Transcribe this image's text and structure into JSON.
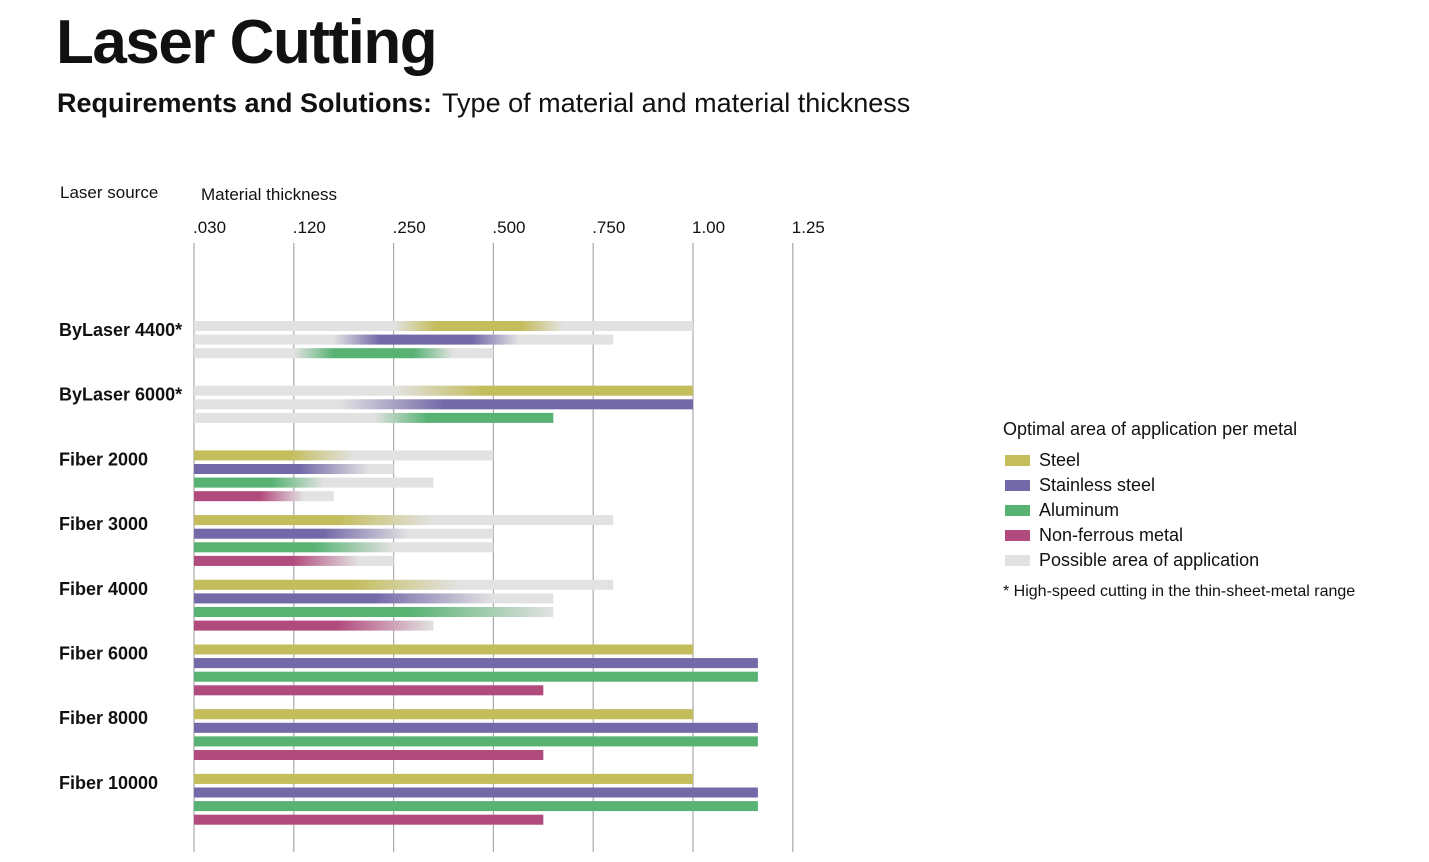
{
  "header": {
    "title": "Laser Cutting",
    "subtitle_bold": "Requirements and Solutions:",
    "subtitle_rest": "Type of material and material thickness"
  },
  "columns": {
    "source": "Laser source",
    "thickness": "Material thickness"
  },
  "legend": {
    "title": "Optimal area of application per metal",
    "items": [
      {
        "label": "Steel",
        "color": "#c4bd5c"
      },
      {
        "label": "Stainless steel",
        "color": "#7368a8"
      },
      {
        "label": "Aluminum",
        "color": "#58b373"
      },
      {
        "label": "Non-ferrous metal",
        "color": "#b24b7d"
      },
      {
        "label": "Possible area of application",
        "color": "#e2e2e2"
      }
    ],
    "note": "* High-speed cutting in the thin-sheet-metal range"
  },
  "chart_data": {
    "type": "bar",
    "orientation": "horizontal",
    "x_ticks": [
      ".030",
      ".120",
      ".250",
      ".500",
      ".750",
      "1.00",
      "1.25"
    ],
    "x_scale": "categorical thickness steps (inches)",
    "grid": true,
    "colors": {
      "Steel": "#c4bd5c",
      "Stainless steel": "#7368a8",
      "Aluminum": "#58b373",
      "Non-ferrous metal": "#b24b7d",
      "possible": "#e2e2e2"
    },
    "categories": [
      "ByLaser 4400*",
      "ByLaser 6000*",
      "Fiber 2000",
      "Fiber 3000",
      "Fiber 4000",
      "Fiber 6000",
      "Fiber 8000",
      "Fiber 10000"
    ],
    "groups": [
      {
        "source": "ByLaser 4400*",
        "bars": [
          {
            "metal": "Steel",
            "possible": [
              0,
              5
            ],
            "optimal": [
              2,
              3.7
            ],
            "fade": "both"
          },
          {
            "metal": "Stainless steel",
            "possible": [
              0,
              4.2
            ],
            "optimal": [
              1.4,
              3.25
            ],
            "fade": "both"
          },
          {
            "metal": "Aluminum",
            "possible": [
              0,
              3
            ],
            "optimal": [
              1,
              2.6
            ],
            "fade": "both"
          }
        ]
      },
      {
        "source": "ByLaser 6000*",
        "bars": [
          {
            "metal": "Steel",
            "possible": [
              0,
              5
            ],
            "optimal": [
              2,
              5
            ],
            "fade": "start"
          },
          {
            "metal": "Stainless steel",
            "possible": [
              0,
              5
            ],
            "optimal": [
              1.45,
              5
            ],
            "fade": "start"
          },
          {
            "metal": "Aluminum",
            "possible": [
              0,
              3.6
            ],
            "optimal": [
              1.8,
              3.6
            ],
            "fade": "start"
          }
        ]
      },
      {
        "source": "Fiber 2000",
        "bars": [
          {
            "metal": "Steel",
            "possible": [
              0,
              3
            ],
            "optimal": [
              0,
              1.6
            ],
            "fade": "end"
          },
          {
            "metal": "Stainless steel",
            "possible": [
              0,
              2
            ],
            "optimal": [
              0,
              1.75
            ],
            "fade": "end"
          },
          {
            "metal": "Aluminum",
            "possible": [
              0,
              2.4
            ],
            "optimal": [
              0,
              1.3
            ],
            "fade": "end"
          },
          {
            "metal": "Non-ferrous metal",
            "possible": [
              0,
              1.4
            ],
            "optimal": [
              0,
              1.1
            ],
            "fade": "end"
          }
        ]
      },
      {
        "source": "Fiber 3000",
        "bars": [
          {
            "metal": "Steel",
            "possible": [
              0,
              4.2
            ],
            "optimal": [
              0,
              2.4
            ],
            "fade": "end"
          },
          {
            "metal": "Stainless steel",
            "possible": [
              0,
              3
            ],
            "optimal": [
              0,
              2.15
            ],
            "fade": "end"
          },
          {
            "metal": "Aluminum",
            "possible": [
              0,
              3
            ],
            "optimal": [
              0,
              2
            ],
            "fade": "end"
          },
          {
            "metal": "Non-ferrous metal",
            "possible": [
              0,
              2
            ],
            "optimal": [
              0,
              1.65
            ],
            "fade": "end"
          }
        ]
      },
      {
        "source": "Fiber 4000",
        "bars": [
          {
            "metal": "Steel",
            "possible": [
              0,
              4.2
            ],
            "optimal": [
              0,
              2.65
            ],
            "fade": "end"
          },
          {
            "metal": "Stainless steel",
            "possible": [
              0,
              3.6
            ],
            "optimal": [
              0,
              3
            ],
            "fade": "end"
          },
          {
            "metal": "Aluminum",
            "possible": [
              0,
              3.6
            ],
            "optimal": [
              0,
              3.6
            ],
            "fade": "end"
          },
          {
            "metal": "Non-ferrous metal",
            "possible": [
              0,
              2.4
            ],
            "optimal": [
              0,
              2.4
            ],
            "fade": "end"
          }
        ]
      },
      {
        "source": "Fiber 6000",
        "bars": [
          {
            "metal": "Steel",
            "possible": [
              0,
              5
            ],
            "optimal": [
              0,
              5
            ],
            "fade": "none"
          },
          {
            "metal": "Stainless steel",
            "possible": [
              0,
              5.65
            ],
            "optimal": [
              0,
              5.65
            ],
            "fade": "none"
          },
          {
            "metal": "Aluminum",
            "possible": [
              0,
              5.65
            ],
            "optimal": [
              0,
              5.65
            ],
            "fade": "none"
          },
          {
            "metal": "Non-ferrous metal",
            "possible": [
              0,
              3.5
            ],
            "optimal": [
              0,
              3.5
            ],
            "fade": "none"
          }
        ]
      },
      {
        "source": "Fiber 8000",
        "bars": [
          {
            "metal": "Steel",
            "possible": [
              0,
              5
            ],
            "optimal": [
              0,
              5
            ],
            "fade": "none"
          },
          {
            "metal": "Stainless steel",
            "possible": [
              0,
              5.65
            ],
            "optimal": [
              0,
              5.65
            ],
            "fade": "none"
          },
          {
            "metal": "Aluminum",
            "possible": [
              0,
              5.65
            ],
            "optimal": [
              0,
              5.65
            ],
            "fade": "none"
          },
          {
            "metal": "Non-ferrous metal",
            "possible": [
              0,
              3.5
            ],
            "optimal": [
              0,
              3.5
            ],
            "fade": "none"
          }
        ]
      },
      {
        "source": "Fiber 10000",
        "bars": [
          {
            "metal": "Steel",
            "possible": [
              0,
              5
            ],
            "optimal": [
              0,
              5
            ],
            "fade": "none"
          },
          {
            "metal": "Stainless steel",
            "possible": [
              0,
              5.65
            ],
            "optimal": [
              0,
              5.65
            ],
            "fade": "none"
          },
          {
            "metal": "Aluminum",
            "possible": [
              0,
              5.65
            ],
            "optimal": [
              0,
              5.65
            ],
            "fade": "none"
          },
          {
            "metal": "Non-ferrous metal",
            "possible": [
              0,
              3.5
            ],
            "optimal": [
              0,
              3.5
            ],
            "fade": "none"
          }
        ]
      }
    ]
  }
}
